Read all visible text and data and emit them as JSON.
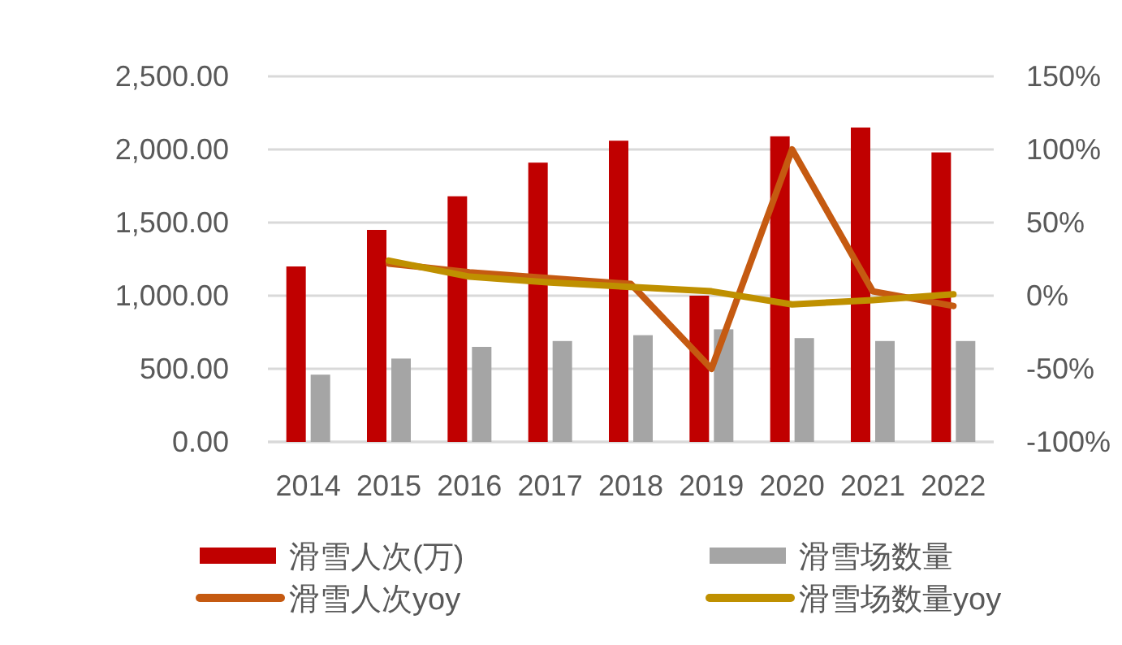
{
  "chart_data": {
    "type": "bar",
    "categories": [
      "2014",
      "2015",
      "2016",
      "2017",
      "2018",
      "2019",
      "2020",
      "2021",
      "2022"
    ],
    "series": [
      {
        "name": "滑雪人次(万)",
        "color": "#c00000",
        "values": [
          1200,
          1450,
          1680,
          1910,
          2060,
          1000,
          2090,
          2150,
          1980
        ]
      },
      {
        "name": "滑雪场数量",
        "color": "#a5a5a5",
        "values": [
          460,
          570,
          650,
          690,
          730,
          770,
          710,
          690,
          690
        ]
      },
      {
        "name": "滑雪人次yoy",
        "type": "line",
        "axis": "y2",
        "color": "#c55a11",
        "values": [
          null,
          22,
          16,
          12,
          8,
          -50,
          100,
          3,
          -7
        ]
      },
      {
        "name": "滑雪场数量yoy",
        "type": "line",
        "axis": "y2",
        "color": "#bf9000",
        "values": [
          null,
          24,
          13,
          9,
          6,
          3,
          -6,
          -3,
          1
        ]
      }
    ],
    "ylim": [
      0,
      2500
    ],
    "yticks": [
      {
        "value": 0,
        "label": "0.00"
      },
      {
        "value": 500,
        "label": "500.00"
      },
      {
        "value": 1000,
        "label": "1,000.00"
      },
      {
        "value": 1500,
        "label": "1,500.00"
      },
      {
        "value": 2000,
        "label": "2,000.00"
      },
      {
        "value": 2500,
        "label": "2,500.00"
      }
    ],
    "y2lim": [
      -100,
      150
    ],
    "y2ticks": [
      {
        "value": -100,
        "label": "-100%"
      },
      {
        "value": -50,
        "label": "-50%"
      },
      {
        "value": 0,
        "label": "0%"
      },
      {
        "value": 50,
        "label": "50%"
      },
      {
        "value": 100,
        "label": "100%"
      },
      {
        "value": 150,
        "label": "150%"
      }
    ],
    "grid": "y",
    "legend": "bottom"
  }
}
